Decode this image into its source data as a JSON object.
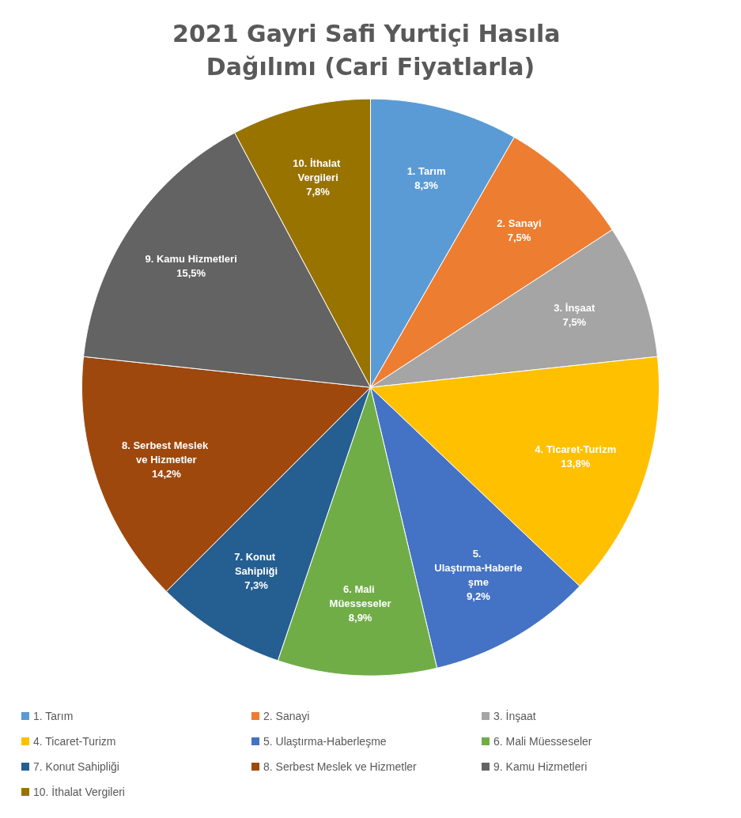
{
  "chart_data": {
    "type": "pie",
    "title": "2021 Gayri Safi Yurtiçi Hasıla Dağılımı (Cari Fiyatlarla)",
    "categories": [
      "1. Tarım",
      "2. Sanayi",
      "3. İnşaat",
      "4. Ticaret-Turizm",
      "5. Ulaştırma-Haberleşme",
      "6. Mali Müesseseler",
      "7. Konut Sahipliği",
      "8. Serbest Meslek ve Hizmetler",
      "9. Kamu Hizmetleri",
      "10. İthalat Vergileri"
    ],
    "values": [
      8.3,
      7.5,
      7.5,
      13.8,
      9.2,
      8.9,
      7.3,
      14.2,
      15.5,
      7.8
    ],
    "value_labels": [
      "8,3%",
      "7,5%",
      "7,5%",
      "13,8%",
      "9,2%",
      "8,9%",
      "7,3%",
      "14,2%",
      "15,5%",
      "7,8%"
    ],
    "colors": [
      "#5b9bd5",
      "#ed7d31",
      "#a5a5a5",
      "#ffc000",
      "#4472c4",
      "#70ad47",
      "#255e91",
      "#9e480e",
      "#636363",
      "#997300"
    ],
    "legend": "bottom"
  }
}
